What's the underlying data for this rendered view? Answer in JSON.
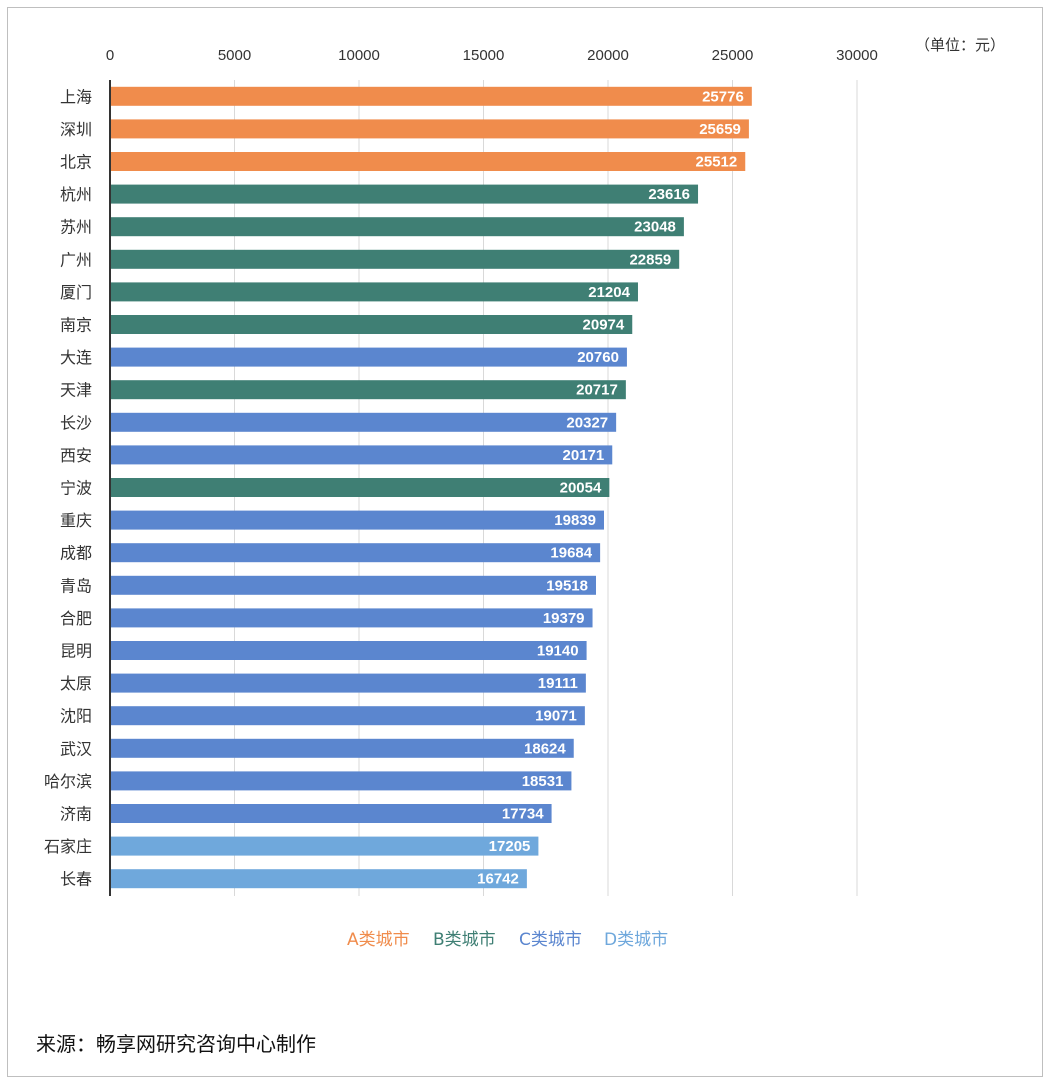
{
  "unit_label": "（单位：元）",
  "source": "来源：畅享网研究咨询中心制作",
  "colors": {
    "A": "#f08c4c",
    "B": "#3f7f74",
    "C": "#5b86cf",
    "D": "#6fa8dc"
  },
  "legend": [
    {
      "key": "A",
      "label": "A类城市",
      "color": "#f08c4c"
    },
    {
      "key": "B",
      "label": "B类城市",
      "color": "#3f7f74"
    },
    {
      "key": "C",
      "label": "C类城市",
      "color": "#5b86cf"
    },
    {
      "key": "D",
      "label": "D类城市",
      "color": "#6fa8dc"
    }
  ],
  "chart_data": {
    "type": "bar",
    "orientation": "horizontal",
    "xlim": [
      0,
      30000
    ],
    "xticks": [
      0,
      5000,
      10000,
      15000,
      20000,
      25000,
      30000
    ],
    "grid": true,
    "legend_position": "bottom",
    "categories": [
      "上海",
      "深圳",
      "北京",
      "杭州",
      "苏州",
      "广州",
      "厦门",
      "南京",
      "大连",
      "天津",
      "长沙",
      "西安",
      "宁波",
      "重庆",
      "成都",
      "青岛",
      "合肥",
      "昆明",
      "太原",
      "沈阳",
      "武汉",
      "哈尔滨",
      "济南",
      "石家庄",
      "长春"
    ],
    "values": [
      25776,
      25659,
      25512,
      23616,
      23048,
      22859,
      21204,
      20974,
      20760,
      20717,
      20327,
      20171,
      20054,
      19839,
      19684,
      19518,
      19379,
      19140,
      19111,
      19071,
      18624,
      18531,
      17734,
      17205,
      16742
    ],
    "classes": [
      "A",
      "A",
      "A",
      "B",
      "B",
      "B",
      "B",
      "B",
      "C",
      "B",
      "C",
      "C",
      "B",
      "C",
      "C",
      "C",
      "C",
      "C",
      "C",
      "C",
      "C",
      "C",
      "C",
      "D",
      "D"
    ]
  }
}
